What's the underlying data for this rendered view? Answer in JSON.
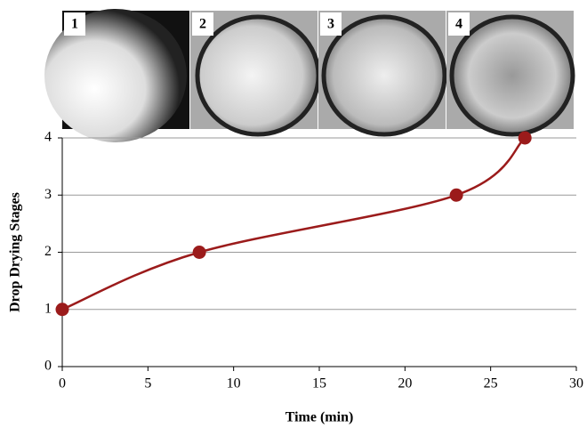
{
  "panels": [
    "1",
    "2",
    "3",
    "4"
  ],
  "chart_data": {
    "type": "line",
    "x_label": "Time (min)",
    "y_label": "Drop Drying Stages",
    "x": [
      0,
      8,
      23,
      27
    ],
    "series": [
      {
        "color": "#9b1b1b",
        "values": [
          1,
          2,
          3,
          4
        ]
      }
    ],
    "xlim": [
      0,
      30
    ],
    "xticks": [
      0,
      5,
      10,
      15,
      20,
      25,
      30
    ],
    "ylim": [
      0,
      4
    ],
    "yticks": [
      0,
      1,
      2,
      3,
      4
    ],
    "grid": true
  }
}
